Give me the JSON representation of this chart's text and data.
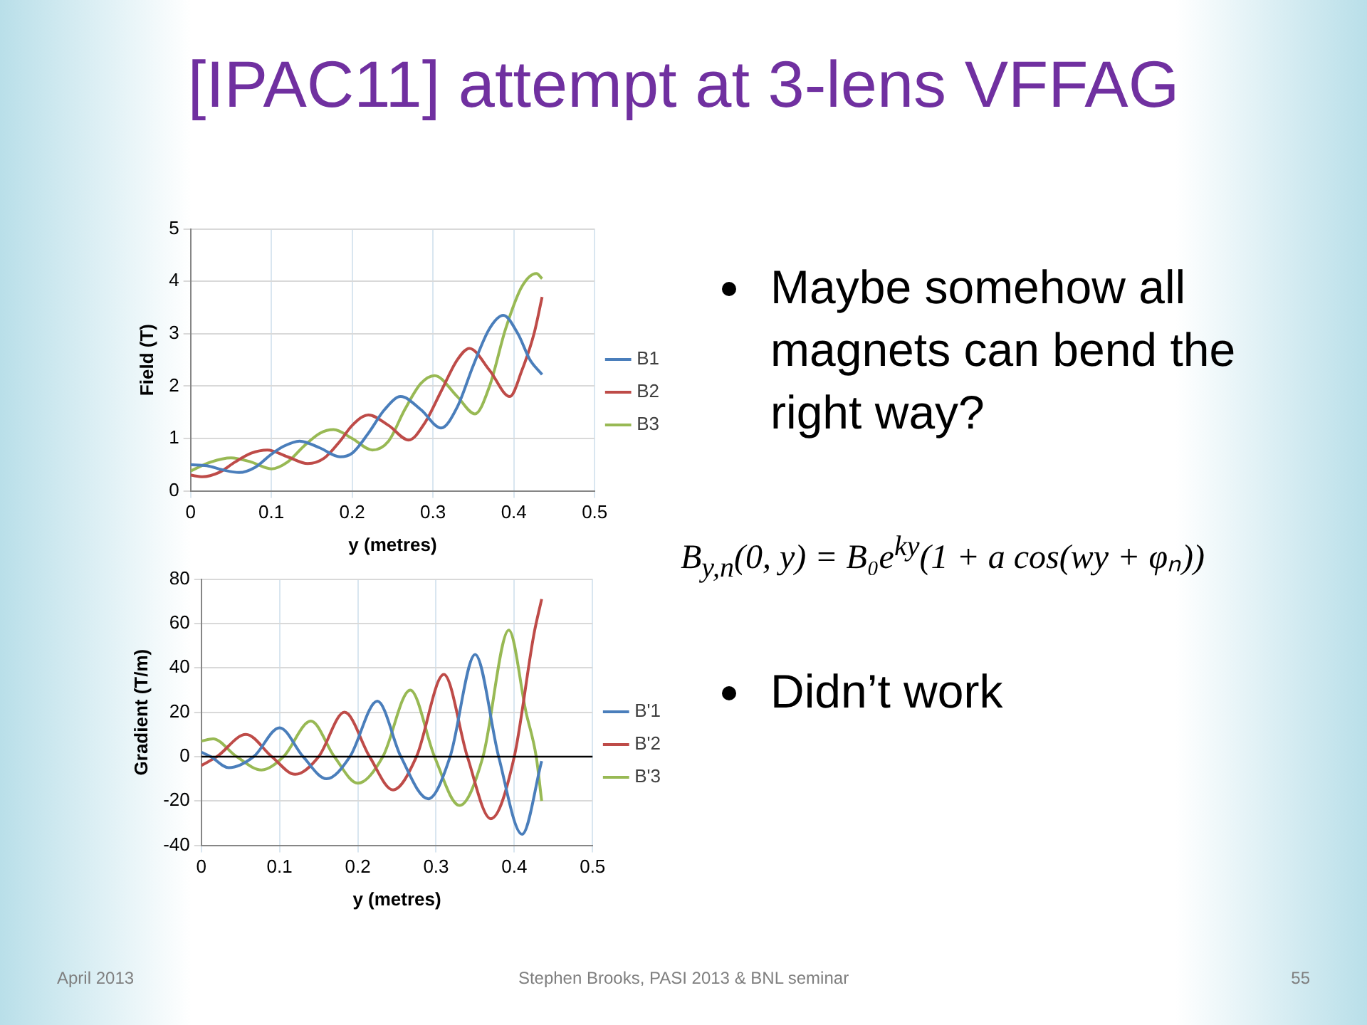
{
  "chart_data": [
    {
      "type": "line",
      "xlabel": "y (metres)",
      "ylabel": "Field (T)",
      "xlim": [
        0,
        0.5
      ],
      "xticks": [
        0,
        0.1,
        0.2,
        0.3,
        0.4,
        0.5
      ],
      "ylim": [
        0,
        5
      ],
      "yticks": [
        0,
        1,
        2,
        3,
        4,
        5
      ],
      "grid": true,
      "legend": "right",
      "marker": "none",
      "line_style": "solid",
      "series": [
        {
          "name": "B1",
          "color": "#4a7ebb",
          "x": [
            0,
            0.02,
            0.04,
            0.06,
            0.08,
            0.1,
            0.115,
            0.135,
            0.16,
            0.185,
            0.2,
            0.22,
            0.24,
            0.26,
            0.285,
            0.31,
            0.33,
            0.35,
            0.37,
            0.387,
            0.405,
            0.42,
            0.435
          ],
          "values": [
            0.5,
            0.48,
            0.4,
            0.35,
            0.45,
            0.7,
            0.85,
            0.95,
            0.82,
            0.65,
            0.72,
            1.1,
            1.55,
            1.8,
            1.55,
            1.2,
            1.6,
            2.4,
            3.1,
            3.35,
            3.0,
            2.5,
            2.22
          ]
        },
        {
          "name": "B2",
          "color": "#be4b48",
          "x": [
            0,
            0.015,
            0.035,
            0.055,
            0.075,
            0.095,
            0.12,
            0.145,
            0.165,
            0.185,
            0.2,
            0.22,
            0.245,
            0.27,
            0.29,
            0.31,
            0.33,
            0.345,
            0.37,
            0.395,
            0.41,
            0.425,
            0.435
          ],
          "values": [
            0.3,
            0.27,
            0.35,
            0.55,
            0.72,
            0.78,
            0.65,
            0.52,
            0.62,
            0.95,
            1.25,
            1.45,
            1.25,
            0.97,
            1.3,
            1.9,
            2.5,
            2.72,
            2.3,
            1.8,
            2.3,
            3.0,
            3.7
          ]
        },
        {
          "name": "B3",
          "color": "#98b954",
          "x": [
            0,
            0.025,
            0.05,
            0.075,
            0.1,
            0.12,
            0.14,
            0.16,
            0.177,
            0.2,
            0.225,
            0.245,
            0.265,
            0.285,
            0.302,
            0.33,
            0.352,
            0.37,
            0.39,
            0.41,
            0.428,
            0.435
          ],
          "values": [
            0.38,
            0.55,
            0.63,
            0.55,
            0.42,
            0.55,
            0.85,
            1.1,
            1.17,
            1.0,
            0.78,
            0.95,
            1.55,
            2.05,
            2.2,
            1.8,
            1.47,
            2.0,
            3.1,
            3.9,
            4.15,
            4.05
          ]
        }
      ]
    },
    {
      "type": "line",
      "xlabel": "y (metres)",
      "ylabel": "Gradient (T/m)",
      "xlim": [
        0,
        0.5
      ],
      "xticks": [
        0,
        0.1,
        0.2,
        0.3,
        0.4,
        0.5
      ],
      "ylim": [
        -40,
        80
      ],
      "yticks": [
        -40,
        -20,
        0,
        20,
        40,
        60,
        80
      ],
      "grid": true,
      "legend": "right",
      "marker": "none",
      "line_style": "solid",
      "ref_lines": [
        {
          "axis": "y",
          "value": 0,
          "color": "#000000"
        }
      ],
      "series": [
        {
          "name": "B'1",
          "color": "#4a7ebb",
          "x": [
            0,
            0.012,
            0.035,
            0.067,
            0.1,
            0.13,
            0.16,
            0.19,
            0.225,
            0.255,
            0.29,
            0.318,
            0.35,
            0.38,
            0.41,
            0.435
          ],
          "values": [
            2,
            0,
            -5,
            0,
            13,
            0,
            -10,
            0,
            25,
            0,
            -19,
            0,
            46,
            0,
            -35,
            -2
          ]
        },
        {
          "name": "B'2",
          "color": "#be4b48",
          "x": [
            0,
            0.02,
            0.057,
            0.09,
            0.12,
            0.15,
            0.183,
            0.215,
            0.245,
            0.275,
            0.31,
            0.34,
            0.37,
            0.4,
            0.425,
            0.435
          ],
          "values": [
            -4,
            0,
            10,
            0,
            -8,
            0,
            20,
            0,
            -15,
            0,
            37,
            0,
            -28,
            0,
            55,
            71
          ]
        },
        {
          "name": "B'3",
          "color": "#98b954",
          "x": [
            0,
            0.015,
            0.045,
            0.077,
            0.105,
            0.14,
            0.17,
            0.2,
            0.232,
            0.267,
            0.298,
            0.33,
            0.36,
            0.393,
            0.415,
            0.428,
            0.435
          ],
          "values": [
            7,
            8,
            0,
            -6,
            0,
            16,
            0,
            -12,
            0,
            30,
            0,
            -22,
            0,
            57,
            20,
            0,
            -20
          ]
        }
      ]
    },
    {
      "type": "other",
      "title": "[IPAC11] attempt at 3-lens VFFAG",
      "annotations": [
        "Maybe somehow all magnets can bend the right way?",
        "Didn’t work",
        "B$_{y,n}$(0, y) = B₀e$^{ky}$(1 + a cos(wy + φₙ))",
        "April 2013",
        "Stephen Brooks, PASI 2013 & BNL seminar",
        "55"
      ]
    }
  ]
}
